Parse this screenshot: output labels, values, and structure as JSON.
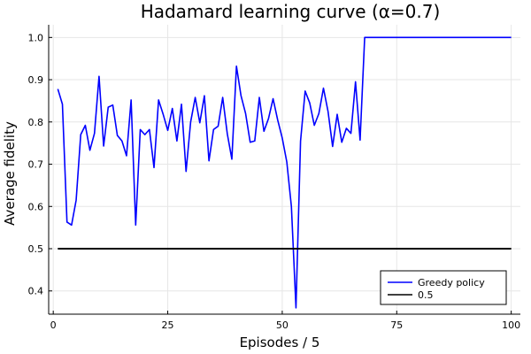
{
  "chart_data": {
    "type": "line",
    "title": "Hadamard learning curve (α=0.7)",
    "xlabel": "Episodes / 5",
    "ylabel": "Average fidelity",
    "xlim": [
      -1,
      102
    ],
    "ylim": [
      0.345,
      1.03
    ],
    "xticks": [
      0,
      25,
      50,
      75,
      100
    ],
    "yticks": [
      0.4,
      0.5,
      0.6,
      0.7,
      0.8,
      0.9,
      1.0
    ],
    "ytick_labels": [
      "0.4",
      "0.5",
      "0.6",
      "0.7",
      "0.8",
      "0.9",
      "1.0"
    ],
    "grid": true,
    "legend_position": "bottom-right",
    "series": [
      {
        "name": "Greedy policy",
        "color": "#0000ff",
        "x": [
          1,
          2,
          3,
          4,
          5,
          6,
          7,
          8,
          9,
          10,
          11,
          12,
          13,
          14,
          15,
          16,
          17,
          18,
          19,
          20,
          21,
          22,
          23,
          24,
          25,
          26,
          27,
          28,
          29,
          30,
          31,
          32,
          33,
          34,
          35,
          36,
          37,
          38,
          39,
          40,
          41,
          42,
          43,
          44,
          45,
          46,
          47,
          48,
          49,
          50,
          51,
          52,
          53,
          54,
          55,
          56,
          57,
          58,
          59,
          60,
          61,
          62,
          63,
          64,
          65,
          66,
          67,
          68,
          69,
          70,
          71,
          72,
          73,
          74,
          75,
          76,
          77,
          78,
          79,
          80,
          81,
          82,
          83,
          84,
          85,
          86,
          87,
          88,
          89,
          90,
          91,
          92,
          93,
          94,
          95,
          96,
          97,
          98,
          99,
          100
        ],
        "y": [
          0.878,
          0.842,
          0.563,
          0.556,
          0.615,
          0.77,
          0.792,
          0.733,
          0.773,
          0.908,
          0.743,
          0.835,
          0.84,
          0.768,
          0.755,
          0.72,
          0.852,
          0.556,
          0.782,
          0.77,
          0.782,
          0.692,
          0.852,
          0.818,
          0.78,
          0.832,
          0.755,
          0.842,
          0.683,
          0.8,
          0.858,
          0.798,
          0.862,
          0.708,
          0.782,
          0.79,
          0.858,
          0.772,
          0.712,
          0.932,
          0.862,
          0.82,
          0.752,
          0.755,
          0.858,
          0.778,
          0.808,
          0.855,
          0.805,
          0.762,
          0.705,
          0.6,
          0.36,
          0.755,
          0.873,
          0.845,
          0.792,
          0.82,
          0.88,
          0.825,
          0.742,
          0.818,
          0.752,
          0.785,
          0.773,
          0.895,
          0.757,
          1.0,
          1.0,
          1.0,
          1.0,
          1.0,
          1.0,
          1.0,
          1.0,
          1.0,
          1.0,
          1.0,
          1.0,
          1.0,
          1.0,
          1.0,
          1.0,
          1.0,
          1.0,
          1.0,
          1.0,
          1.0,
          1.0,
          1.0,
          1.0,
          1.0,
          1.0,
          1.0,
          1.0,
          1.0,
          1.0,
          1.0,
          1.0,
          1.0
        ]
      },
      {
        "name": "0.5",
        "color": "#000000",
        "x": [
          1,
          100
        ],
        "y": [
          0.5,
          0.5
        ]
      }
    ]
  }
}
